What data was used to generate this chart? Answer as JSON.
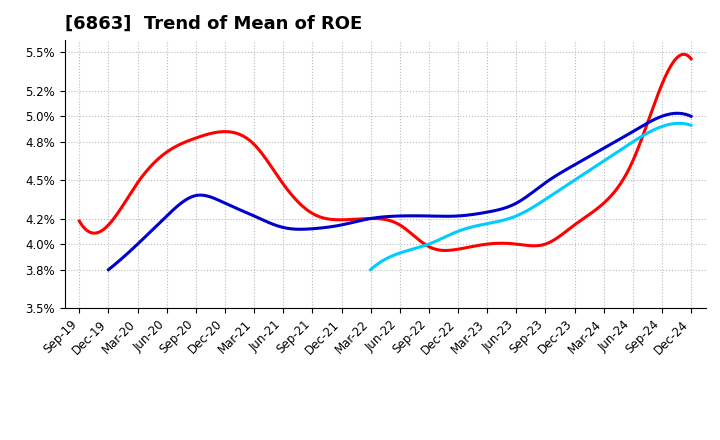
{
  "title": "[6863]  Trend of Mean of ROE",
  "ylim": [
    0.035,
    0.056
  ],
  "yticks": [
    0.035,
    0.038,
    0.04,
    0.042,
    0.045,
    0.048,
    0.05,
    0.052,
    0.055
  ],
  "ytick_labels": [
    "3.5%",
    "3.8%",
    "4.0%",
    "4.2%",
    "4.5%",
    "4.8%",
    "5.0%",
    "5.2%",
    "5.5%"
  ],
  "x_labels": [
    "Sep-19",
    "Dec-19",
    "Mar-20",
    "Jun-20",
    "Sep-20",
    "Dec-20",
    "Mar-21",
    "Jun-21",
    "Sep-21",
    "Dec-21",
    "Mar-22",
    "Jun-22",
    "Sep-22",
    "Dec-22",
    "Mar-23",
    "Jun-23",
    "Sep-23",
    "Dec-23",
    "Mar-24",
    "Jun-24",
    "Sep-24",
    "Dec-24"
  ],
  "series": {
    "3 Years": {
      "color": "#ff0000",
      "data_x": [
        0,
        1,
        2,
        3,
        4,
        5,
        6,
        7,
        8,
        9,
        10,
        11,
        12,
        13,
        14,
        15,
        16,
        17,
        18,
        19,
        20,
        21
      ],
      "data_y": [
        0.0418,
        0.0415,
        0.0448,
        0.0472,
        0.0483,
        0.0488,
        0.0478,
        0.0447,
        0.0424,
        0.0419,
        0.042,
        0.0415,
        0.0398,
        0.0396,
        0.04,
        0.04,
        0.04,
        0.0415,
        0.0432,
        0.0465,
        0.0525,
        0.0545
      ]
    },
    "5 Years": {
      "color": "#0000cc",
      "data_x": [
        1,
        2,
        3,
        4,
        5,
        6,
        7,
        8,
        9,
        10,
        11,
        12,
        13,
        14,
        15,
        16,
        17,
        18,
        19,
        20,
        21
      ],
      "data_y": [
        0.038,
        0.04,
        0.0422,
        0.0438,
        0.0432,
        0.0422,
        0.0413,
        0.0412,
        0.0415,
        0.042,
        0.0422,
        0.0422,
        0.0422,
        0.0425,
        0.0432,
        0.0448,
        0.0462,
        0.0475,
        0.0488,
        0.05,
        0.05
      ]
    },
    "7 Years": {
      "color": "#00ccff",
      "data_x": [
        10,
        11,
        12,
        13,
        14,
        15,
        16,
        17,
        18,
        19,
        20,
        21
      ],
      "data_y": [
        0.038,
        0.0393,
        0.04,
        0.041,
        0.0416,
        0.0422,
        0.0435,
        0.045,
        0.0465,
        0.048,
        0.0492,
        0.0493
      ]
    },
    "10 Years": {
      "color": "#008800",
      "data_x": [],
      "data_y": []
    }
  },
  "background_color": "#ffffff",
  "grid_color": "#bbbbbb",
  "title_fontsize": 13,
  "tick_fontsize": 8.5,
  "linewidth": 2.2
}
